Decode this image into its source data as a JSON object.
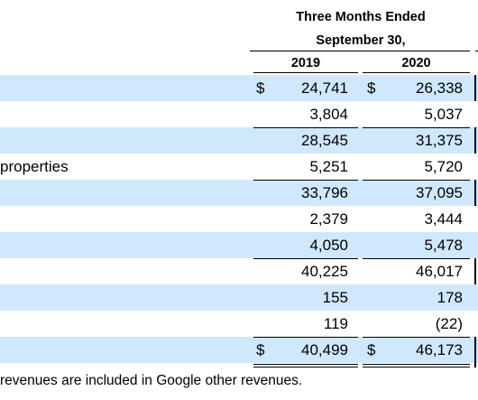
{
  "header": {
    "line1": "Three Months Ended",
    "line2": "September 30,",
    "years": [
      "2019",
      "2020"
    ]
  },
  "rows": [
    {
      "label": "",
      "cur1": "$",
      "v2019": "24,741",
      "cur2": "$",
      "v2020": "26,338"
    },
    {
      "label": "",
      "cur1": "",
      "v2019": "3,804",
      "cur2": "",
      "v2020": "5,037"
    },
    {
      "label": "",
      "cur1": "",
      "v2019": "28,545",
      "cur2": "",
      "v2020": "31,375"
    },
    {
      "label": "properties",
      "cur1": "",
      "v2019": "5,251",
      "cur2": "",
      "v2020": "5,720"
    },
    {
      "label": "",
      "cur1": "",
      "v2019": "33,796",
      "cur2": "",
      "v2020": "37,095"
    },
    {
      "label": "",
      "cur1": "",
      "v2019": "2,379",
      "cur2": "",
      "v2020": "3,444"
    },
    {
      "label": "",
      "cur1": "",
      "v2019": "4,050",
      "cur2": "",
      "v2020": "5,478"
    },
    {
      "label": "",
      "cur1": "",
      "v2019": "40,225",
      "cur2": "",
      "v2020": "46,017"
    },
    {
      "label": "",
      "cur1": "",
      "v2019": "155",
      "cur2": "",
      "v2020": "178"
    },
    {
      "label": "",
      "cur1": "",
      "v2019": "119",
      "cur2": "",
      "v2020": "(22)"
    },
    {
      "label": "",
      "cur1": "$",
      "v2019": "40,499",
      "cur2": "$",
      "v2020": "46,173"
    }
  ],
  "footnote": "revenues are included in Google other revenues."
}
